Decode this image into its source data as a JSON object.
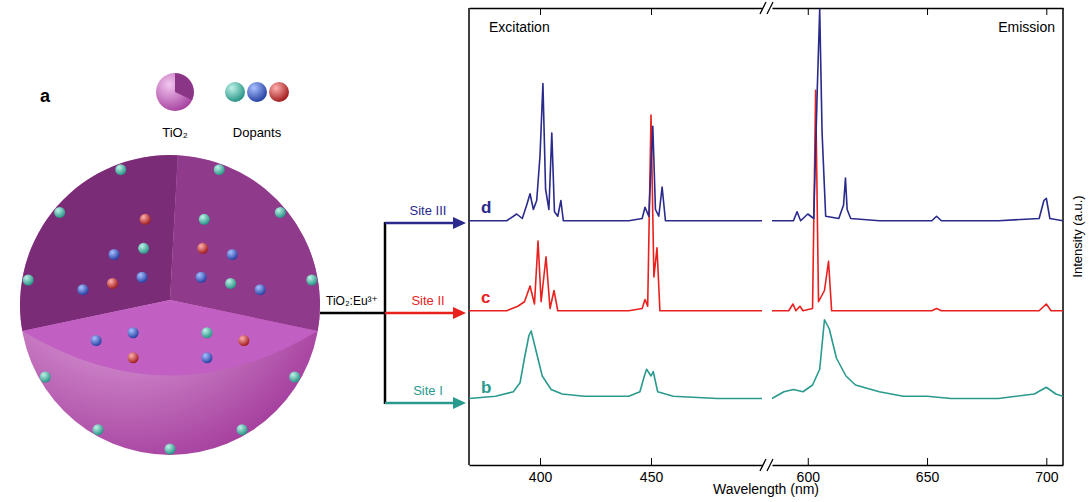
{
  "diagram": {
    "panel_label": "a",
    "host_label": "TiO₂",
    "dopants_label": "Dopants",
    "material_label": "TiO₂:Eu³⁺"
  },
  "chart_data": {
    "type": "line",
    "xlabel": "Wavelength (nm)",
    "ylabel": "Intensity (a.u.)",
    "ylim": [
      0,
      1
    ],
    "tick_labels": "x",
    "segments": [
      {
        "title": "Excitation",
        "xlim": [
          368,
          500
        ],
        "xticks": [
          400,
          450
        ]
      },
      {
        "title": "Emission",
        "xlim": [
          585,
          707
        ],
        "xticks": [
          600,
          650,
          700
        ]
      }
    ],
    "series": [
      {
        "name": "Site I",
        "panel_label": "b",
        "color": "#2a9a8e",
        "segments": [
          {
            "x": [
              368,
              380,
              388,
              391,
              393,
              395,
              396,
              398,
              401,
              405,
              410,
              420,
              440,
              445,
              447,
              448,
              450,
              451,
              453,
              460,
              480,
              500
            ],
            "values": [
              0.02,
              0.03,
              0.05,
              0.09,
              0.2,
              0.3,
              0.32,
              0.24,
              0.12,
              0.06,
              0.04,
              0.03,
              0.03,
              0.05,
              0.12,
              0.15,
              0.12,
              0.14,
              0.05,
              0.03,
              0.02,
              0.02
            ]
          },
          {
            "x": [
              585,
              590,
              594,
              598,
              602,
              605,
              607,
              609,
              612,
              616,
              620,
              630,
              640,
              650,
              660,
              680,
              695,
              700,
              704,
              707
            ],
            "values": [
              0.02,
              0.05,
              0.06,
              0.05,
              0.08,
              0.15,
              0.37,
              0.33,
              0.2,
              0.12,
              0.08,
              0.05,
              0.03,
              0.03,
              0.02,
              0.02,
              0.04,
              0.07,
              0.04,
              0.03
            ]
          }
        ]
      },
      {
        "name": "Site II",
        "panel_label": "c",
        "color": "#e8211e",
        "segments": [
          {
            "x": [
              368,
              385,
              390,
              393,
              395.5,
              397.5,
              399.1,
              400.5,
              402.7,
              404.5,
              406.3,
              408,
              420,
              440,
              446,
              447.3,
              448.5,
              450,
              451.3,
              452.7,
              454,
              470,
              500
            ],
            "values": [
              0.01,
              0.01,
              0.03,
              0.05,
              0.12,
              0.04,
              0.32,
              0.05,
              0.25,
              0.02,
              0.1,
              0.01,
              0.01,
              0.01,
              0.02,
              0.06,
              0.03,
              0.88,
              0.16,
              0.29,
              0.01,
              0.01,
              0.01
            ]
          },
          {
            "x": [
              585,
              592,
              593.8,
              595,
              596.7,
              598,
              602,
              603.3,
              604.5,
              607,
              608.7,
              610,
              630,
              652,
              654,
              656,
              680,
              697,
              700,
              702,
              707
            ],
            "values": [
              0.01,
              0.01,
              0.04,
              0.01,
              0.03,
              0.01,
              0.02,
              0.99,
              0.05,
              0.1,
              0.23,
              0.01,
              0.01,
              0.01,
              0.02,
              0.01,
              0.01,
              0.01,
              0.04,
              0.01,
              0.01
            ]
          }
        ]
      },
      {
        "name": "Site III",
        "panel_label": "d",
        "color": "#2a2a8c",
        "segments": [
          {
            "x": [
              368,
              385,
              389.5,
              392,
              394,
              395.5,
              397,
              398.5,
              400,
              401.3,
              402.5,
              404,
              405.3,
              406.5,
              408,
              409.4,
              410.5,
              420,
              440,
              446,
              447.3,
              449,
              450.8,
              452,
              453.5,
              455,
              456.5,
              470,
              500
            ],
            "values": [
              0.01,
              0.01,
              0.04,
              0.02,
              0.08,
              0.13,
              0.06,
              0.1,
              0.3,
              0.62,
              0.15,
              0.06,
              0.4,
              0.05,
              0.03,
              0.1,
              0.01,
              0.01,
              0.01,
              0.02,
              0.07,
              0.03,
              0.43,
              0.06,
              0.03,
              0.16,
              0.01,
              0.01,
              0.01
            ]
          },
          {
            "x": [
              585,
              594,
              595.5,
              597,
              600,
              602.5,
              604,
              605,
              606,
              607.5,
              613,
              615,
              615.8,
              616.5,
              618,
              630,
              652,
              654,
              656,
              680,
              697,
              699,
              700,
              701.5,
              707
            ],
            "values": [
              0.01,
              0.01,
              0.05,
              0.01,
              0.04,
              0.02,
              0.6,
              0.95,
              0.4,
              0.03,
              0.02,
              0.08,
              0.2,
              0.06,
              0.02,
              0.01,
              0.01,
              0.03,
              0.01,
              0.01,
              0.02,
              0.1,
              0.11,
              0.02,
              0.01
            ]
          }
        ]
      }
    ]
  }
}
